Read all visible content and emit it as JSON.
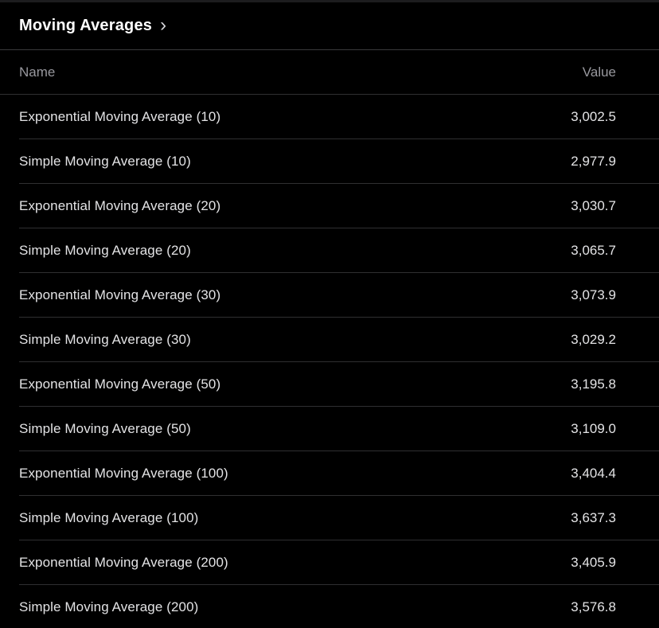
{
  "panel": {
    "title": "Moving Averages"
  },
  "icons": {
    "chevron_right": "›"
  },
  "table": {
    "columns": {
      "name": "Name",
      "value": "Value"
    },
    "rows": [
      {
        "name": "Exponential Moving Average (10)",
        "value": "3,002.5"
      },
      {
        "name": "Simple Moving Average (10)",
        "value": "2,977.9"
      },
      {
        "name": "Exponential Moving Average (20)",
        "value": "3,030.7"
      },
      {
        "name": "Simple Moving Average (20)",
        "value": "3,065.7"
      },
      {
        "name": "Exponential Moving Average (30)",
        "value": "3,073.9"
      },
      {
        "name": "Simple Moving Average (30)",
        "value": "3,029.2"
      },
      {
        "name": "Exponential Moving Average (50)",
        "value": "3,195.8"
      },
      {
        "name": "Simple Moving Average (50)",
        "value": "3,109.0"
      },
      {
        "name": "Exponential Moving Average (100)",
        "value": "3,404.4"
      },
      {
        "name": "Simple Moving Average (100)",
        "value": "3,637.3"
      },
      {
        "name": "Exponential Moving Average (200)",
        "value": "3,405.9"
      },
      {
        "name": "Simple Moving Average (200)",
        "value": "3,576.8"
      }
    ]
  },
  "colors": {
    "background": "#000000",
    "title_text": "#ffffff",
    "header_text": "#98989e",
    "row_text": "#e3e3e5",
    "divider": "#2f2f31",
    "title_divider": "#3a3a3c"
  }
}
